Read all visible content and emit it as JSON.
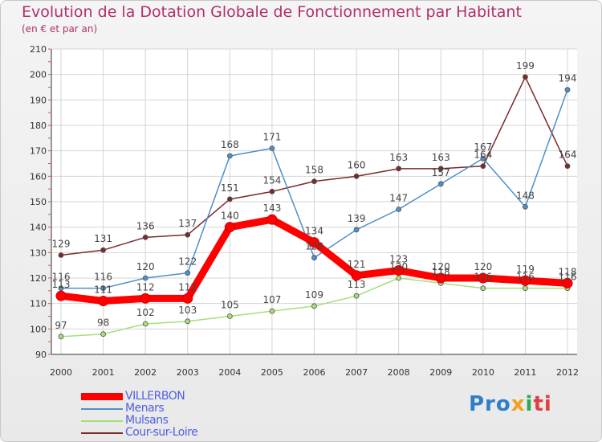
{
  "header": {
    "title": "Evolution de la Dotation Globale de Fonctionnement par Habitant",
    "subtitle": "(en € et par an)"
  },
  "logo": {
    "parts": [
      "Pro",
      "x",
      "i",
      "ti"
    ]
  },
  "chart_data": {
    "type": "line",
    "title": "Evolution de la Dotation Globale de Fonctionnement par Habitant",
    "subtitle": "(en € et par an)",
    "xlabel": "",
    "ylabel": "",
    "ylim": [
      90,
      210
    ],
    "yticks": [
      90,
      100,
      110,
      120,
      130,
      140,
      150,
      160,
      170,
      180,
      190,
      200,
      210
    ],
    "categories": [
      "2000",
      "2001",
      "2002",
      "2003",
      "2004",
      "2005",
      "2006",
      "2007",
      "2008",
      "2009",
      "2010",
      "2011",
      "2012"
    ],
    "grid": true,
    "legend_position": "bottom-left",
    "series": [
      {
        "name": "Cour-sur-Loire",
        "color": "#7a2a2a",
        "values": [
          129,
          131,
          136,
          137,
          151,
          154,
          158,
          160,
          163,
          163,
          164,
          199,
          164
        ]
      },
      {
        "name": "Menars",
        "color": "#4f8fca",
        "values": [
          116,
          116,
          120,
          122,
          168,
          171,
          128,
          139,
          147,
          157,
          167,
          148,
          194
        ]
      },
      {
        "name": "Mulsans",
        "color": "#a6df7a",
        "values": [
          97,
          98,
          102,
          103,
          105,
          107,
          109,
          113,
          120,
          118,
          116,
          116,
          116
        ]
      },
      {
        "name": "VILLERBON",
        "color": "#ff0000",
        "values": [
          113,
          111,
          112,
          112,
          140,
          143,
          134,
          121,
          123,
          120,
          120,
          119,
          118
        ]
      }
    ],
    "legend": [
      "VILLERBON",
      "Menars",
      "Mulsans",
      "Cour-sur-Loire"
    ]
  }
}
